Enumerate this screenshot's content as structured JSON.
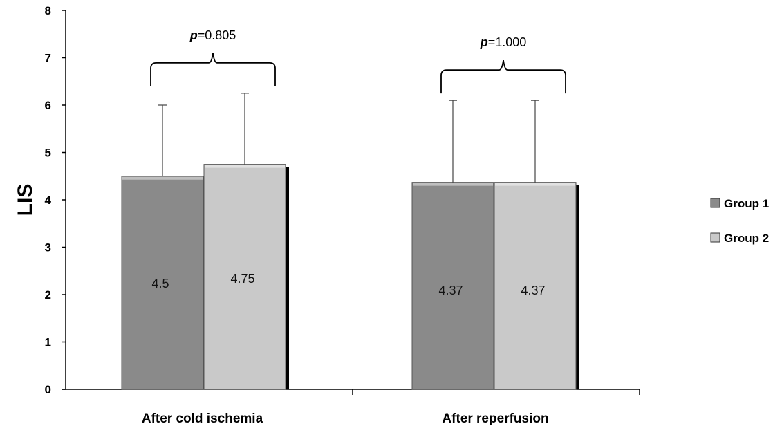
{
  "chart_data": {
    "type": "bar",
    "ylabel": "LIS",
    "ylim": [
      0,
      8
    ],
    "yticks": [
      "0",
      "1",
      "2",
      "3",
      "4",
      "5",
      "6",
      "7",
      "8"
    ],
    "categories": [
      "After cold ischemia",
      "After reperfusion"
    ],
    "series": [
      {
        "name": "Group 1",
        "values": [
          4.5,
          4.37
        ],
        "value_labels": [
          "4.5",
          "4.37"
        ],
        "error_upper": [
          6.0,
          6.1
        ],
        "color": "#8a8a8a"
      },
      {
        "name": "Group 2",
        "values": [
          4.75,
          4.37
        ],
        "value_labels": [
          "4.75",
          "4.37"
        ],
        "error_upper": [
          6.25,
          6.1
        ],
        "color": "#c9c9c9"
      }
    ],
    "annotations": [
      {
        "category": "After cold ischemia",
        "p_prefix": "p",
        "p_value": "=0.805"
      },
      {
        "category": "After reperfusion",
        "p_prefix": "p",
        "p_value": "=1.000"
      }
    ],
    "legend_position": "right",
    "grid": false
  }
}
